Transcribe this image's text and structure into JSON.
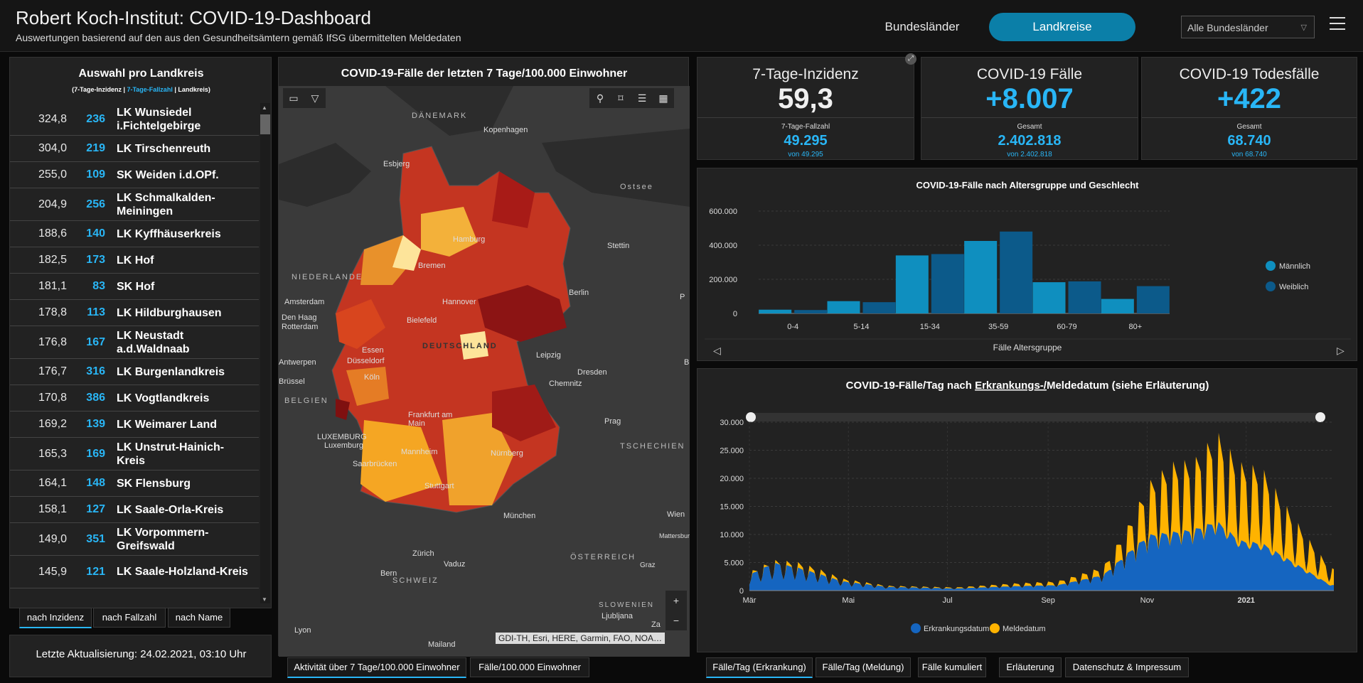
{
  "header": {
    "title": "Robert Koch-Institut: COVID-19-Dashboard",
    "subtitle": "Auswertungen basierend auf den aus den Gesundheitsämtern gemäß IfSG übermittelten Meldedaten",
    "btn_bundeslaender": "Bundesländer",
    "btn_landkreise": "Landkreise",
    "select_value": "Alle Bundesländer"
  },
  "list": {
    "title": "Auswahl pro Landkreis",
    "legend_a": "(7-Tage-Inzidenz | ",
    "legend_b": "7-Tage-Fallzahl",
    "legend_c": " | Landkreis)",
    "rows": [
      {
        "inz": "324,8",
        "fz": "236",
        "name": "LK Wunsiedel i.Fichtelgebirge"
      },
      {
        "inz": "304,0",
        "fz": "219",
        "name": "LK Tirschenreuth"
      },
      {
        "inz": "255,0",
        "fz": "109",
        "name": "SK Weiden i.d.OPf."
      },
      {
        "inz": "204,9",
        "fz": "256",
        "name": "LK Schmalkalden-Meiningen"
      },
      {
        "inz": "188,6",
        "fz": "140",
        "name": "LK Kyffhäuserkreis"
      },
      {
        "inz": "182,5",
        "fz": "173",
        "name": "LK Hof"
      },
      {
        "inz": "181,1",
        "fz": "83",
        "name": "SK Hof"
      },
      {
        "inz": "178,8",
        "fz": "113",
        "name": "LK Hildburghausen"
      },
      {
        "inz": "176,8",
        "fz": "167",
        "name": "LK Neustadt a.d.Waldnaab"
      },
      {
        "inz": "176,7",
        "fz": "316",
        "name": "LK Burgenlandkreis"
      },
      {
        "inz": "170,8",
        "fz": "386",
        "name": "LK Vogtlandkreis"
      },
      {
        "inz": "169,2",
        "fz": "139",
        "name": "LK Weimarer Land"
      },
      {
        "inz": "165,3",
        "fz": "169",
        "name": "LK Unstrut-Hainich-Kreis"
      },
      {
        "inz": "164,1",
        "fz": "148",
        "name": "SK Flensburg"
      },
      {
        "inz": "158,1",
        "fz": "127",
        "name": "LK Saale-Orla-Kreis"
      },
      {
        "inz": "149,0",
        "fz": "351",
        "name": "LK Vorpommern-Greifswald"
      },
      {
        "inz": "145,9",
        "fz": "121",
        "name": "LK Saale-Holzland-Kreis"
      }
    ],
    "sort_tabs": [
      "nach Inzidenz",
      "nach Fallzahl",
      "nach Name"
    ],
    "update_label": "Letzte Aktualisierung:",
    "update_value": "24.02.2021, 03:10 Uhr"
  },
  "map": {
    "title": "COVID-19-Fälle der letzten 7 Tage/100.000 Einwohner",
    "labels": {
      "daenemark": "DÄNEMARK",
      "kopenhagen": "Kopenhagen",
      "esbjerg": "Esbjerg",
      "ostsee": "Ostsee",
      "hamburg": "Hamburg",
      "stettin": "Stettin",
      "bremen": "Bremen",
      "niederlande": "NIEDERLANDE",
      "amsterdam": "Amsterdam",
      "denhaag": "Den Haag",
      "rotterdam": "Rotterdam",
      "hannover": "Hannover",
      "berlin": "Berlin",
      "bielefeld": "Bielefeld",
      "deutschland": "DEUTSCHLAND",
      "essen": "Essen",
      "duesseldorf": "Düsseldorf",
      "antwerpen": "Antwerpen",
      "leipzig": "Leipzig",
      "koeln": "Köln",
      "dresden": "Dresden",
      "bruessel": "Brüssel",
      "chemnitz": "Chemnitz",
      "belgien": "BELGIEN",
      "frankfurt": "Frankfurt am Main",
      "prag": "Prag",
      "luxemburg_c": "LUXEMBURG",
      "luxemburg": "Luxemburg",
      "tschechien": "TSCHECHIEN",
      "mannheim": "Mannheim",
      "nuernberg": "Nürnberg",
      "saarbruecken": "Saarbrücken",
      "stuttgart": "Stuttgart",
      "wien": "Wien",
      "muenchen": "München",
      "mattersburg": "Mattersburg",
      "zuerich": "Zürich",
      "oesterreich": "ÖSTERREICH",
      "vaduz": "Vaduz",
      "graz": "Graz",
      "bern": "Bern",
      "schweiz": "SCHWEIZ",
      "slowenien": "SLOWENIEN",
      "ljubljana": "Ljubljana",
      "lyon": "Lyon",
      "mailand": "Mailand",
      "zagreb": "Za",
      "p": "P",
      "b": "B"
    },
    "attribution": "GDI-TH, Esri, HERE, Garmin, FAO, NOA…",
    "tabs": [
      "Aktivität über 7 Tage/100.000 Einwohner",
      "Fälle/100.000 Einwohner"
    ]
  },
  "cards": {
    "inz": {
      "title": "7-Tage-Inzidenz",
      "value": "59,3",
      "sub_label": "7-Tage-Fallzahl",
      "sub_value": "49.295",
      "note": "von 49.295"
    },
    "cases": {
      "title": "COVID-19 Fälle",
      "value": "+8.007",
      "sub_label": "Gesamt",
      "sub_value": "2.402.818",
      "note": "von 2.402.818"
    },
    "deaths": {
      "title": "COVID-19 Todesfälle",
      "value": "+422",
      "sub_label": "Gesamt",
      "sub_value": "68.740",
      "note": "von 68.740"
    }
  },
  "colors": {
    "accent": "#29b6f6",
    "button": "#0b7fa8",
    "male": "#0f8fbf",
    "female": "#0c5a8a",
    "onset": "#1565c0",
    "report": "#ffb300"
  },
  "chart_data": [
    {
      "type": "bar",
      "title": "COVID-19-Fälle nach Altersgruppe und Geschlecht",
      "xlabel": "Fälle Altersgruppe",
      "categories": [
        "0-4",
        "5-14",
        "15-34",
        "35-59",
        "60-79",
        "80+"
      ],
      "series": [
        {
          "name": "Männlich",
          "values": [
            22000,
            72000,
            340000,
            425000,
            183000,
            85000
          ]
        },
        {
          "name": "Weiblich",
          "values": [
            20000,
            66000,
            348000,
            480000,
            188000,
            160000
          ]
        }
      ],
      "ylim": [
        0,
        600000
      ],
      "yticks": [
        "0",
        "200.000",
        "400.000",
        "600.000"
      ],
      "legend": "right"
    },
    {
      "type": "area",
      "title_a": "COVID-19-Fälle/Tag nach ",
      "title_u": "Erkrankungs-/",
      "title_b": "Meldedatum (siehe Erläuterung)",
      "xticks": [
        "Mär",
        "Mai",
        "Jul",
        "Sep",
        "Nov",
        "2021"
      ],
      "yticks": [
        "0",
        "5.000",
        "10.000",
        "15.000",
        "20.000",
        "25.000",
        "30.000"
      ],
      "ylim": [
        0,
        30000
      ],
      "series": [
        {
          "name": "Erkrankungsdatum"
        },
        {
          "name": "Meldedatum"
        }
      ],
      "weekly_peaks": [
        {
          "week": "2020-03-02",
          "onset": 3000,
          "report": 3500
        },
        {
          "week": "2020-03-16",
          "onset": 5000,
          "report": 5500
        },
        {
          "week": "2020-03-30",
          "onset": 4200,
          "report": 5200
        },
        {
          "week": "2020-04-13",
          "onset": 3000,
          "report": 3900
        },
        {
          "week": "2020-04-27",
          "onset": 1700,
          "report": 2200
        },
        {
          "week": "2020-05-25",
          "onset": 700,
          "report": 900
        },
        {
          "week": "2020-07-06",
          "onset": 400,
          "report": 600
        },
        {
          "week": "2020-08-10",
          "onset": 800,
          "report": 1300
        },
        {
          "week": "2020-09-07",
          "onset": 1000,
          "report": 1700
        },
        {
          "week": "2020-10-05",
          "onset": 2800,
          "report": 4300
        },
        {
          "week": "2020-10-19",
          "onset": 6500,
          "report": 11000
        },
        {
          "week": "2020-11-02",
          "onset": 10000,
          "report": 19500
        },
        {
          "week": "2020-11-16",
          "onset": 10500,
          "report": 23000
        },
        {
          "week": "2020-11-30",
          "onset": 11000,
          "report": 23500
        },
        {
          "week": "2020-12-14",
          "onset": 12500,
          "report": 28500
        },
        {
          "week": "2020-12-28",
          "onset": 9000,
          "report": 23000
        },
        {
          "week": "2021-01-11",
          "onset": 8500,
          "report": 22000
        },
        {
          "week": "2021-01-25",
          "onset": 6000,
          "report": 15500
        },
        {
          "week": "2021-02-08",
          "onset": 3500,
          "report": 9500
        },
        {
          "week": "2021-02-22",
          "onset": 1000,
          "report": 4000
        }
      ],
      "legend": "bottom"
    }
  ],
  "chart_tabs": [
    "Fälle/Tag (Erkrankung)",
    "Fälle/Tag (Meldung)",
    "Fälle kumuliert",
    "Erläuterung",
    "Datenschutz & Impressum"
  ]
}
